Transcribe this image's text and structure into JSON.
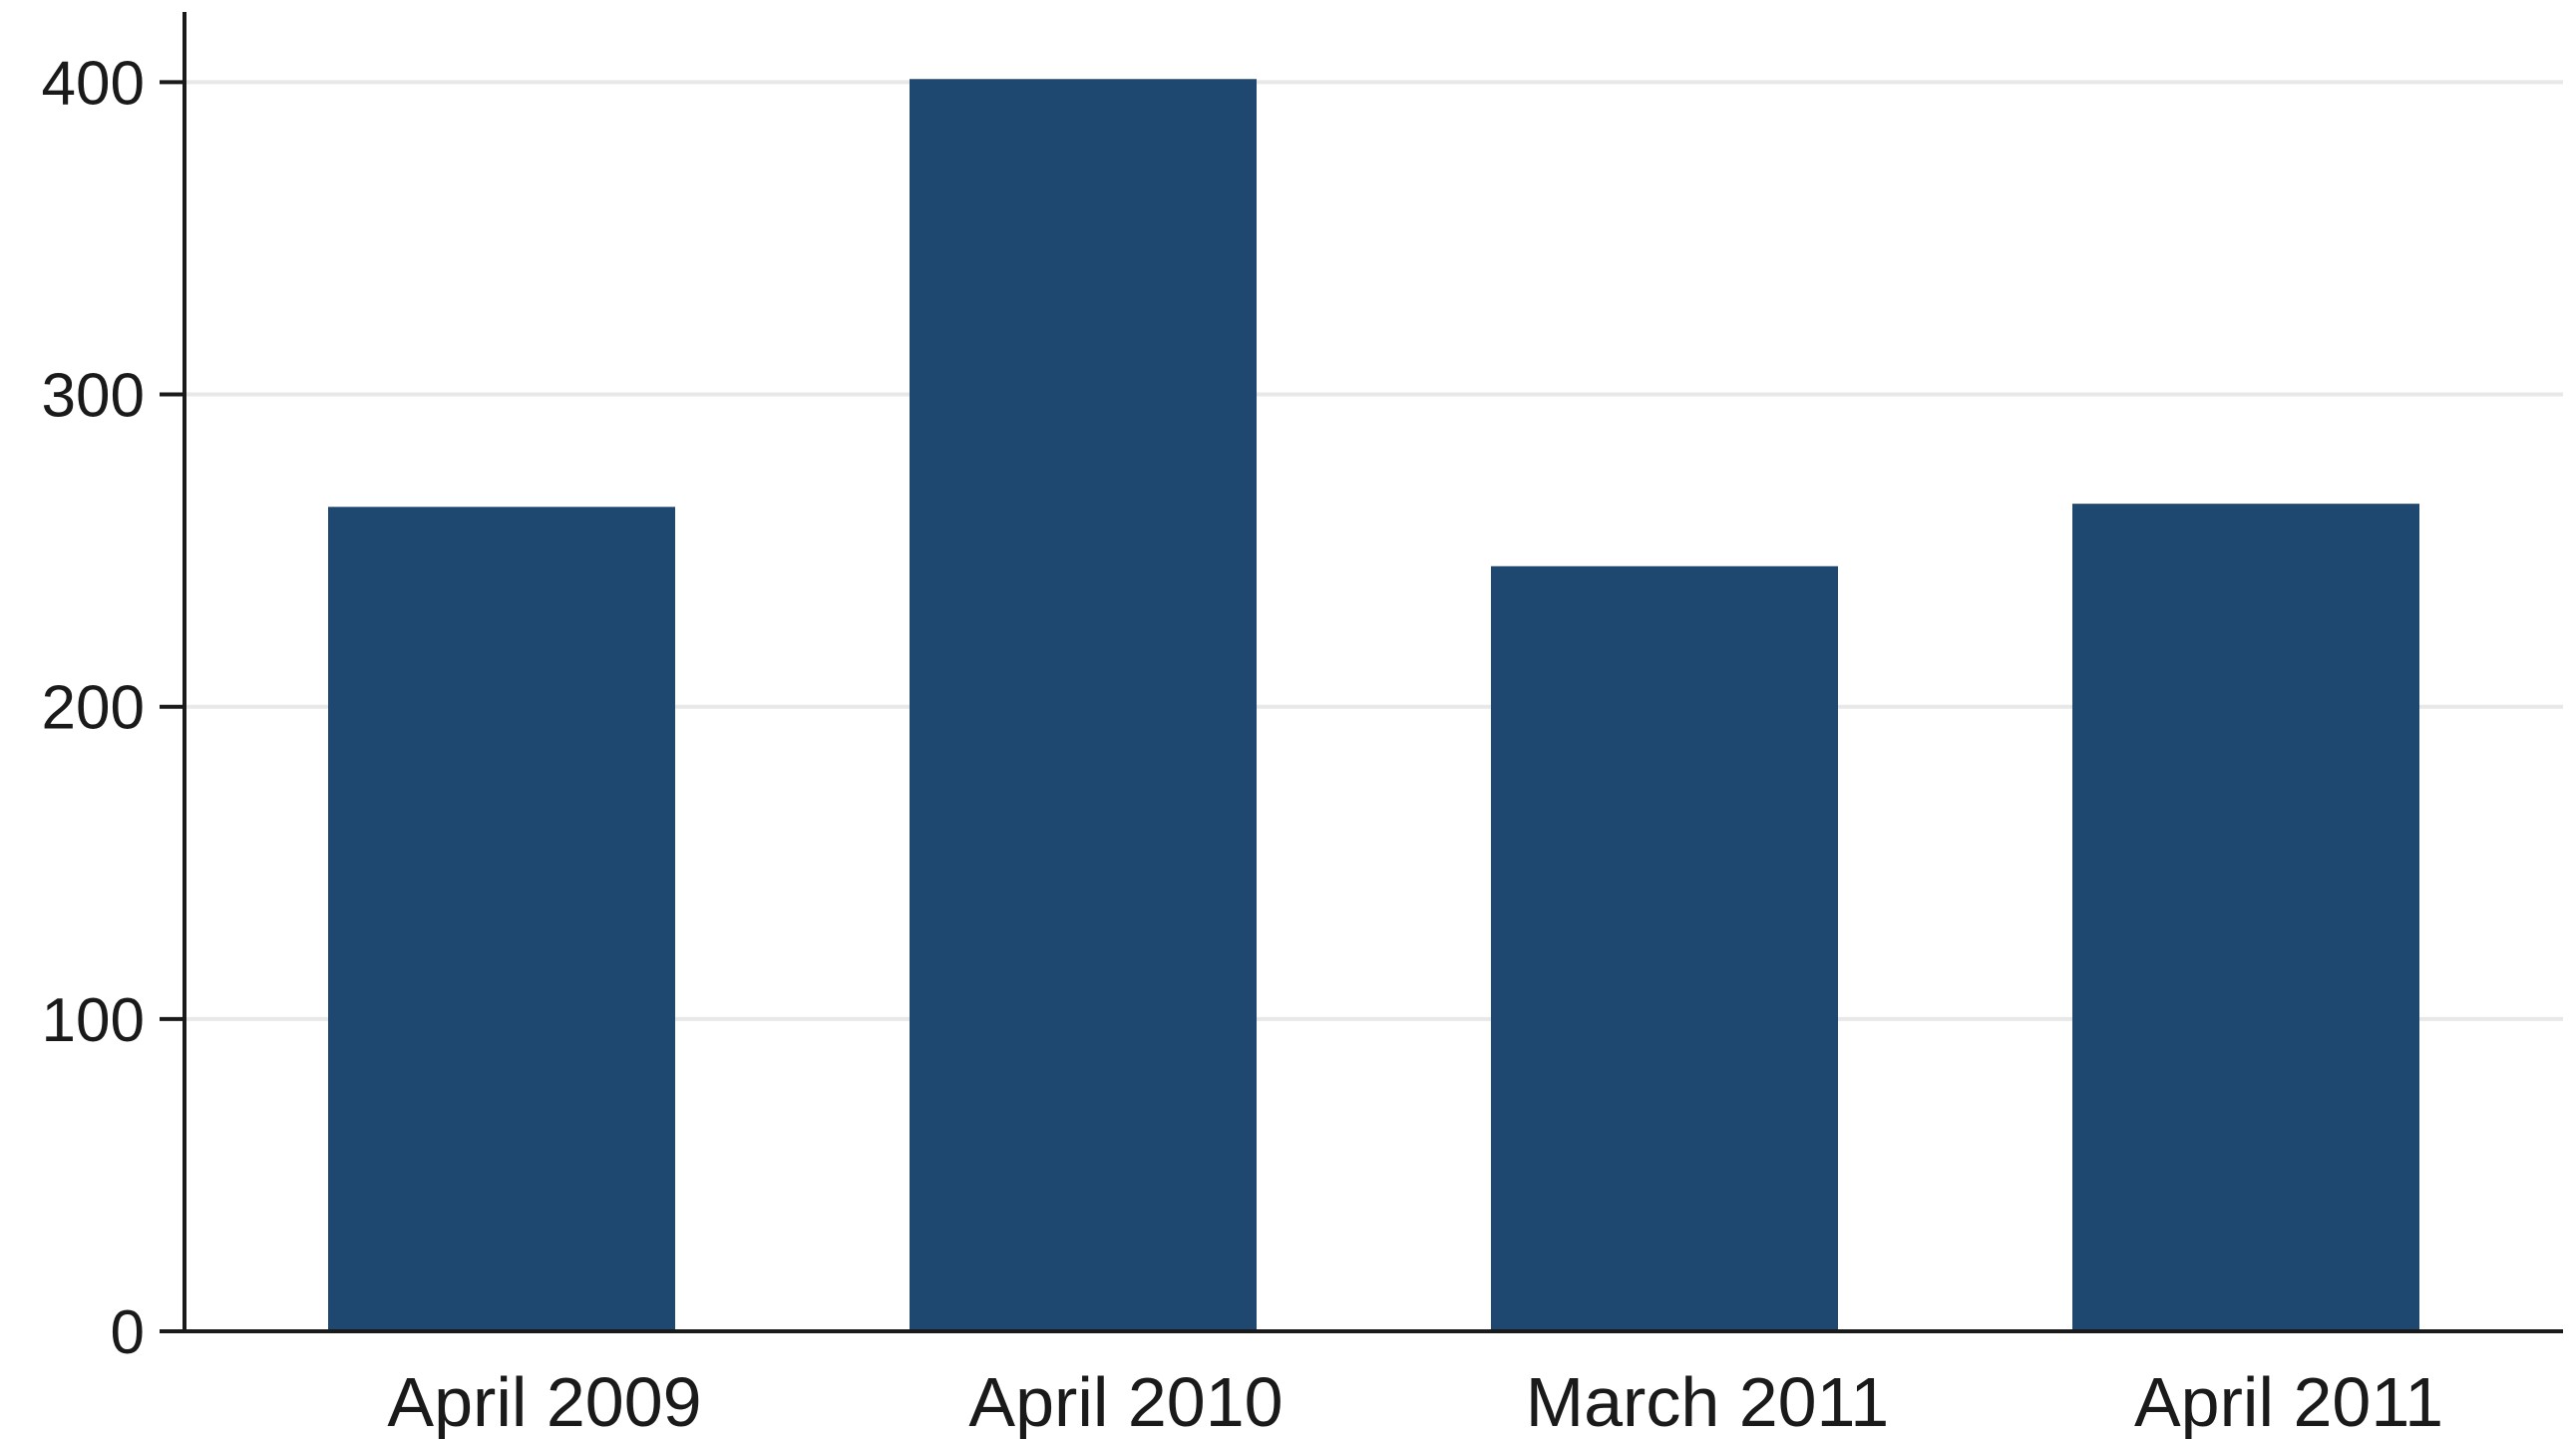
{
  "chart_data": {
    "type": "bar",
    "categories": [
      "April 2009",
      "April 2010",
      "March 2011",
      "April 2011"
    ],
    "values": [
      264,
      401,
      245,
      265
    ],
    "ylim": [
      0,
      420
    ],
    "yticks": [
      0,
      100,
      200,
      300,
      400
    ],
    "grid": true,
    "colors": {
      "bar": "#1f4870",
      "grid": "#e8e8e8",
      "axis": "#1a1a1a"
    }
  }
}
